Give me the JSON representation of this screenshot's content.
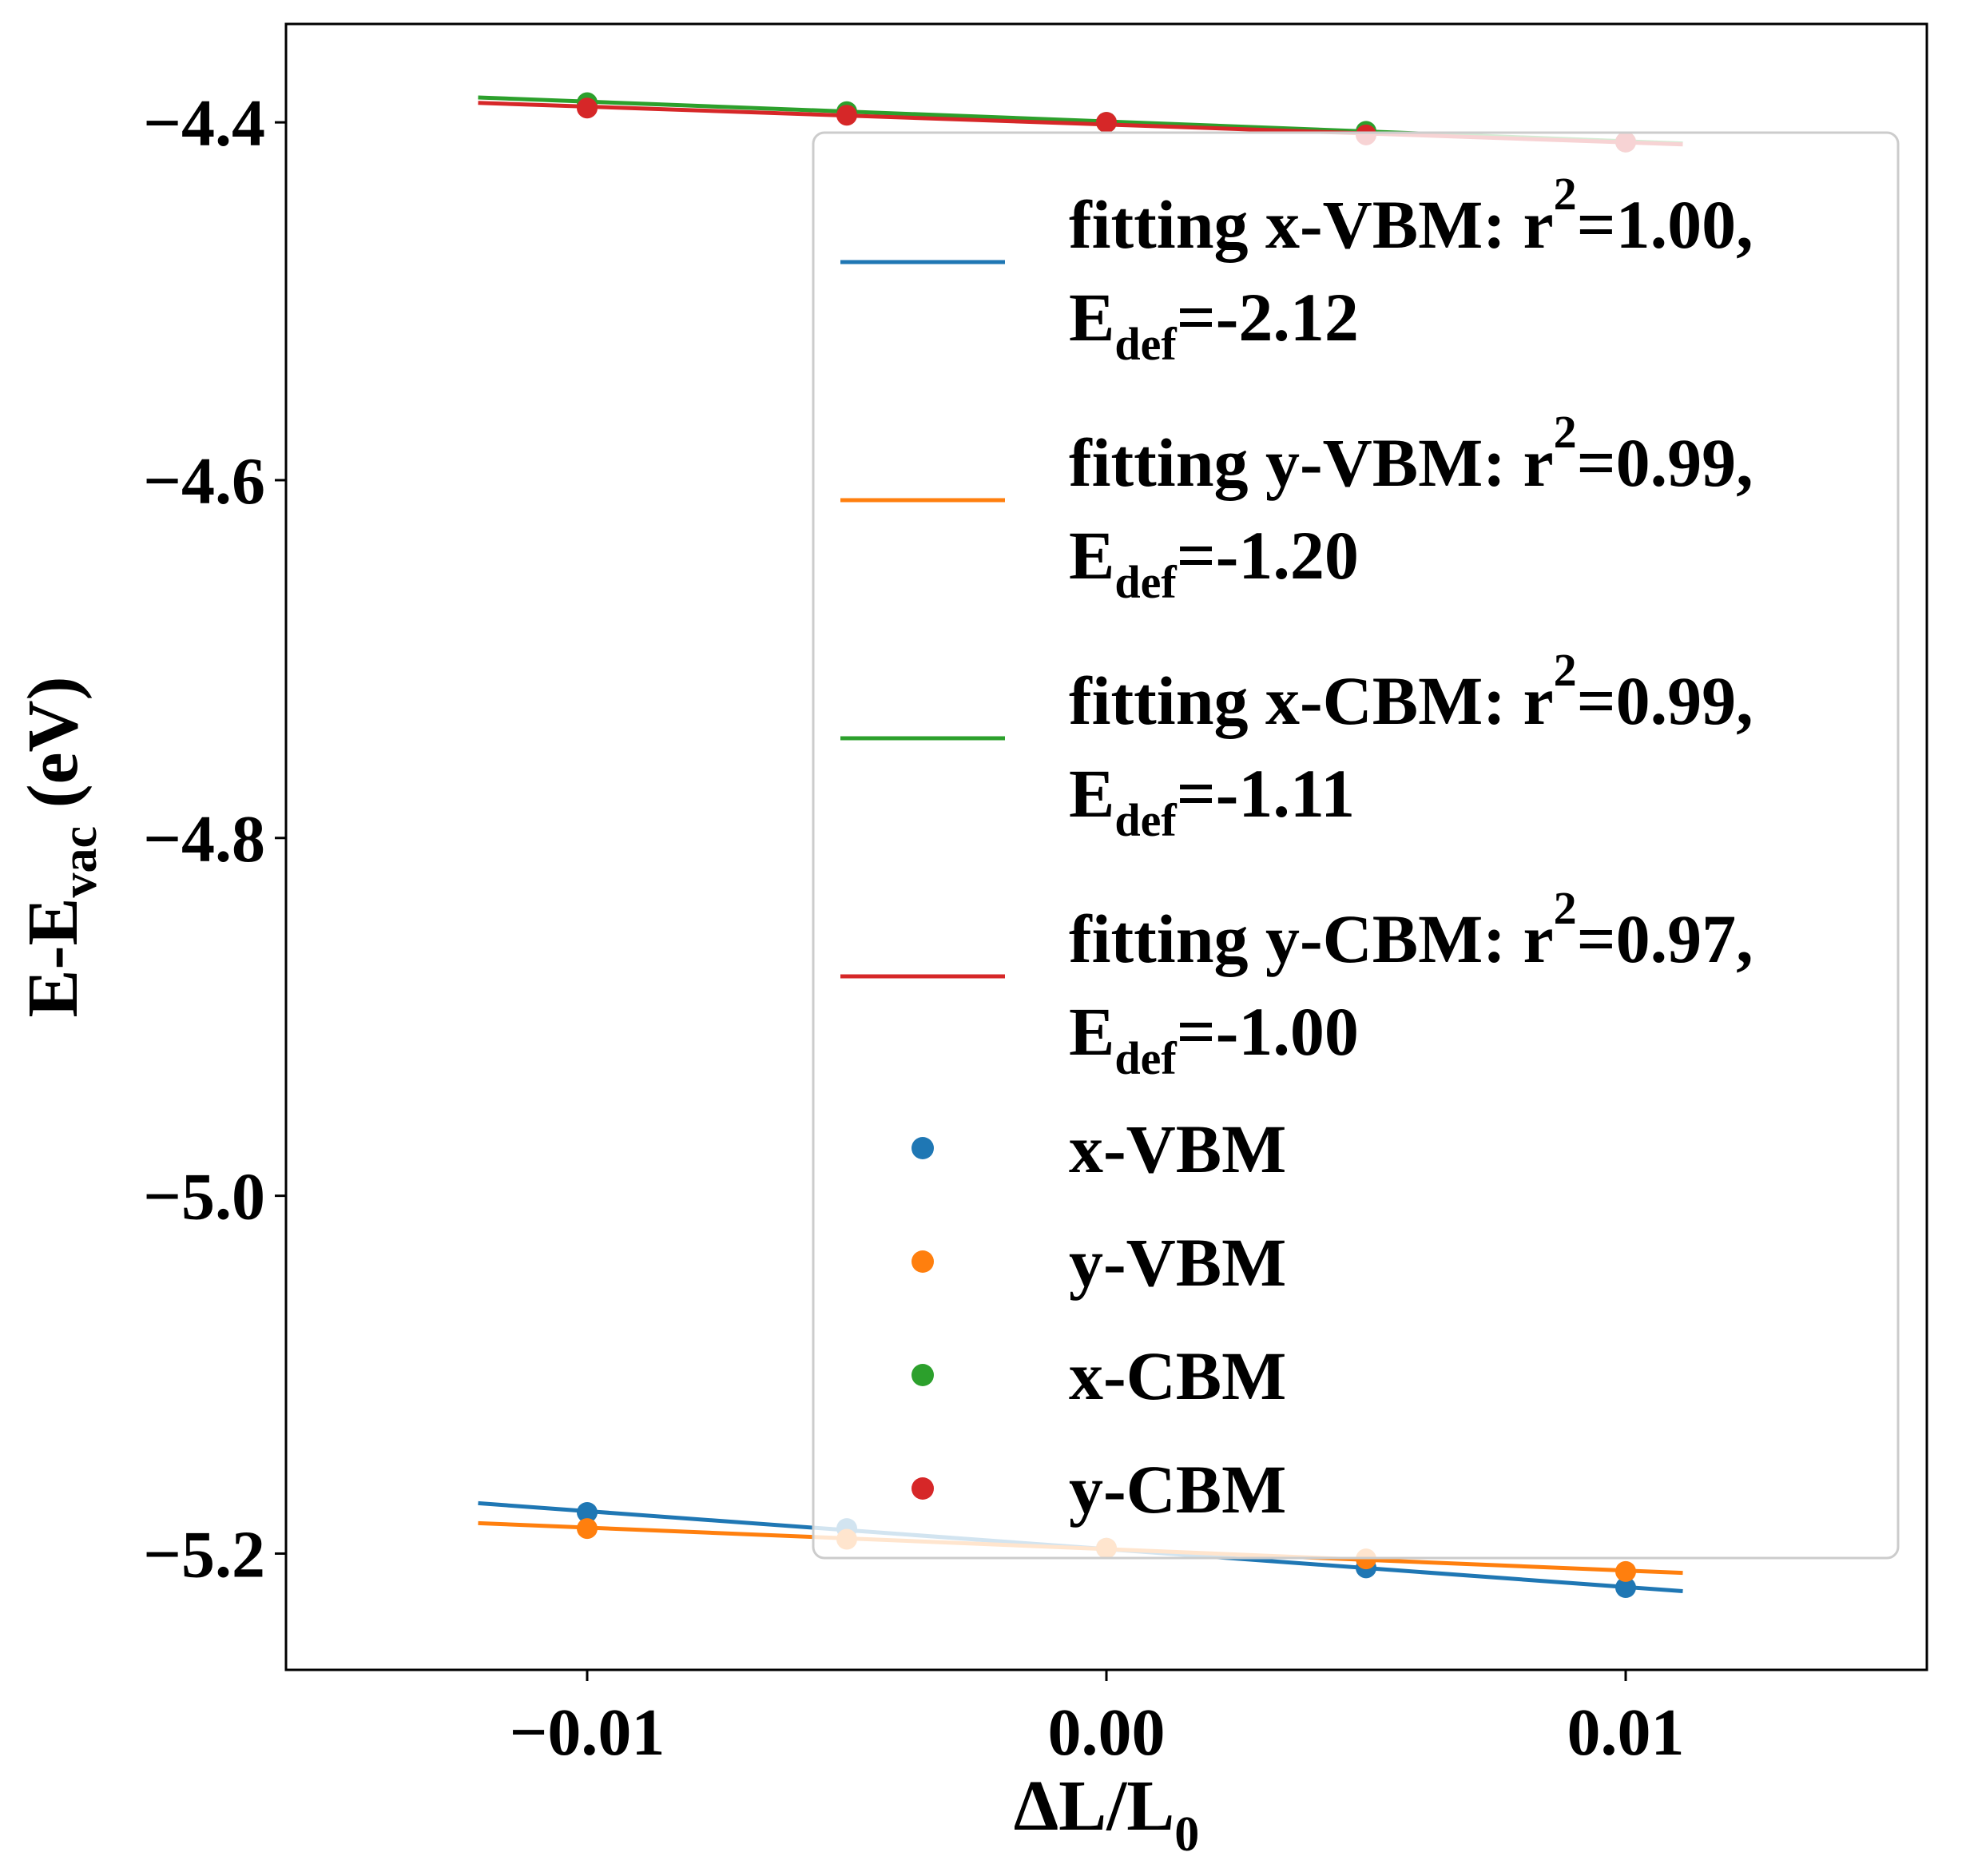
{
  "chart_data": {
    "type": "scatter",
    "xlabel": {
      "main": "ΔL/L",
      "sub": "0"
    },
    "ylabel": {
      "main": "E-E",
      "sub": "vac",
      "suffix": " (eV)"
    },
    "xlim": [
      -0.0158,
      0.0158
    ],
    "ylim": [
      -5.265,
      -4.345
    ],
    "x_ticks": [
      -0.01,
      0.0,
      0.01
    ],
    "x_tick_labels": [
      "−0.01",
      "0.00",
      "0.01"
    ],
    "y_ticks": [
      -4.4,
      -4.6,
      -4.8,
      -5.0,
      -5.2
    ],
    "y_tick_labels": [
      "−4.4",
      "−4.6",
      "−4.8",
      "−5.0",
      "−5.2"
    ],
    "grid": false,
    "legend_position": "right",
    "x": [
      -0.01,
      -0.005,
      0.0,
      0.005,
      0.01
    ],
    "fit_x_range": [
      -0.0121,
      0.0111
    ],
    "series": [
      {
        "name": "x-VBM",
        "color": "#1f77b4",
        "values": [
          -5.177,
          -5.186,
          -5.197,
          -5.208,
          -5.219
        ],
        "fit": {
          "slope": -2.12,
          "intercept": -5.1975
        },
        "fit_label": {
          "line1": "fitting x-VBM: r",
          "sup": "2",
          "line1_end": "=1.00,",
          "line2_main": "E",
          "line2_sub": "def",
          "line2_end": "=-2.12"
        }
      },
      {
        "name": "y-VBM",
        "color": "#ff7f0e",
        "values": [
          -5.186,
          -5.192,
          -5.197,
          -5.203,
          -5.21
        ],
        "fit": {
          "slope": -1.2,
          "intercept": -5.1975
        },
        "fit_label": {
          "line1": "fitting y-VBM: r",
          "sup": "2",
          "line1_end": "=0.99,",
          "line2_main": "E",
          "line2_sub": "def",
          "line2_end": "=-1.20"
        }
      },
      {
        "name": "x-CBM",
        "color": "#2ca02c",
        "values": [
          -4.389,
          -4.394,
          -4.4,
          -4.405,
          -4.411
        ],
        "fit": {
          "slope": -1.11,
          "intercept": -4.3995
        },
        "fit_label": {
          "line1": "fitting x-CBM: r",
          "sup": "2",
          "line1_end": "=0.99,",
          "line2_main": "E",
          "line2_sub": "def",
          "line2_end": "=-1.11"
        }
      },
      {
        "name": "y-CBM",
        "color": "#d62728",
        "values": [
          -4.392,
          -4.396,
          -4.4,
          -4.407,
          -4.411
        ],
        "fit": {
          "slope": -1.0,
          "intercept": -4.4012
        },
        "fit_label": {
          "line1": "fitting y-CBM: r",
          "sup": "2",
          "line1_end": "=0.97,",
          "line2_main": "E",
          "line2_sub": "def",
          "line2_end": "=-1.00"
        }
      }
    ]
  }
}
